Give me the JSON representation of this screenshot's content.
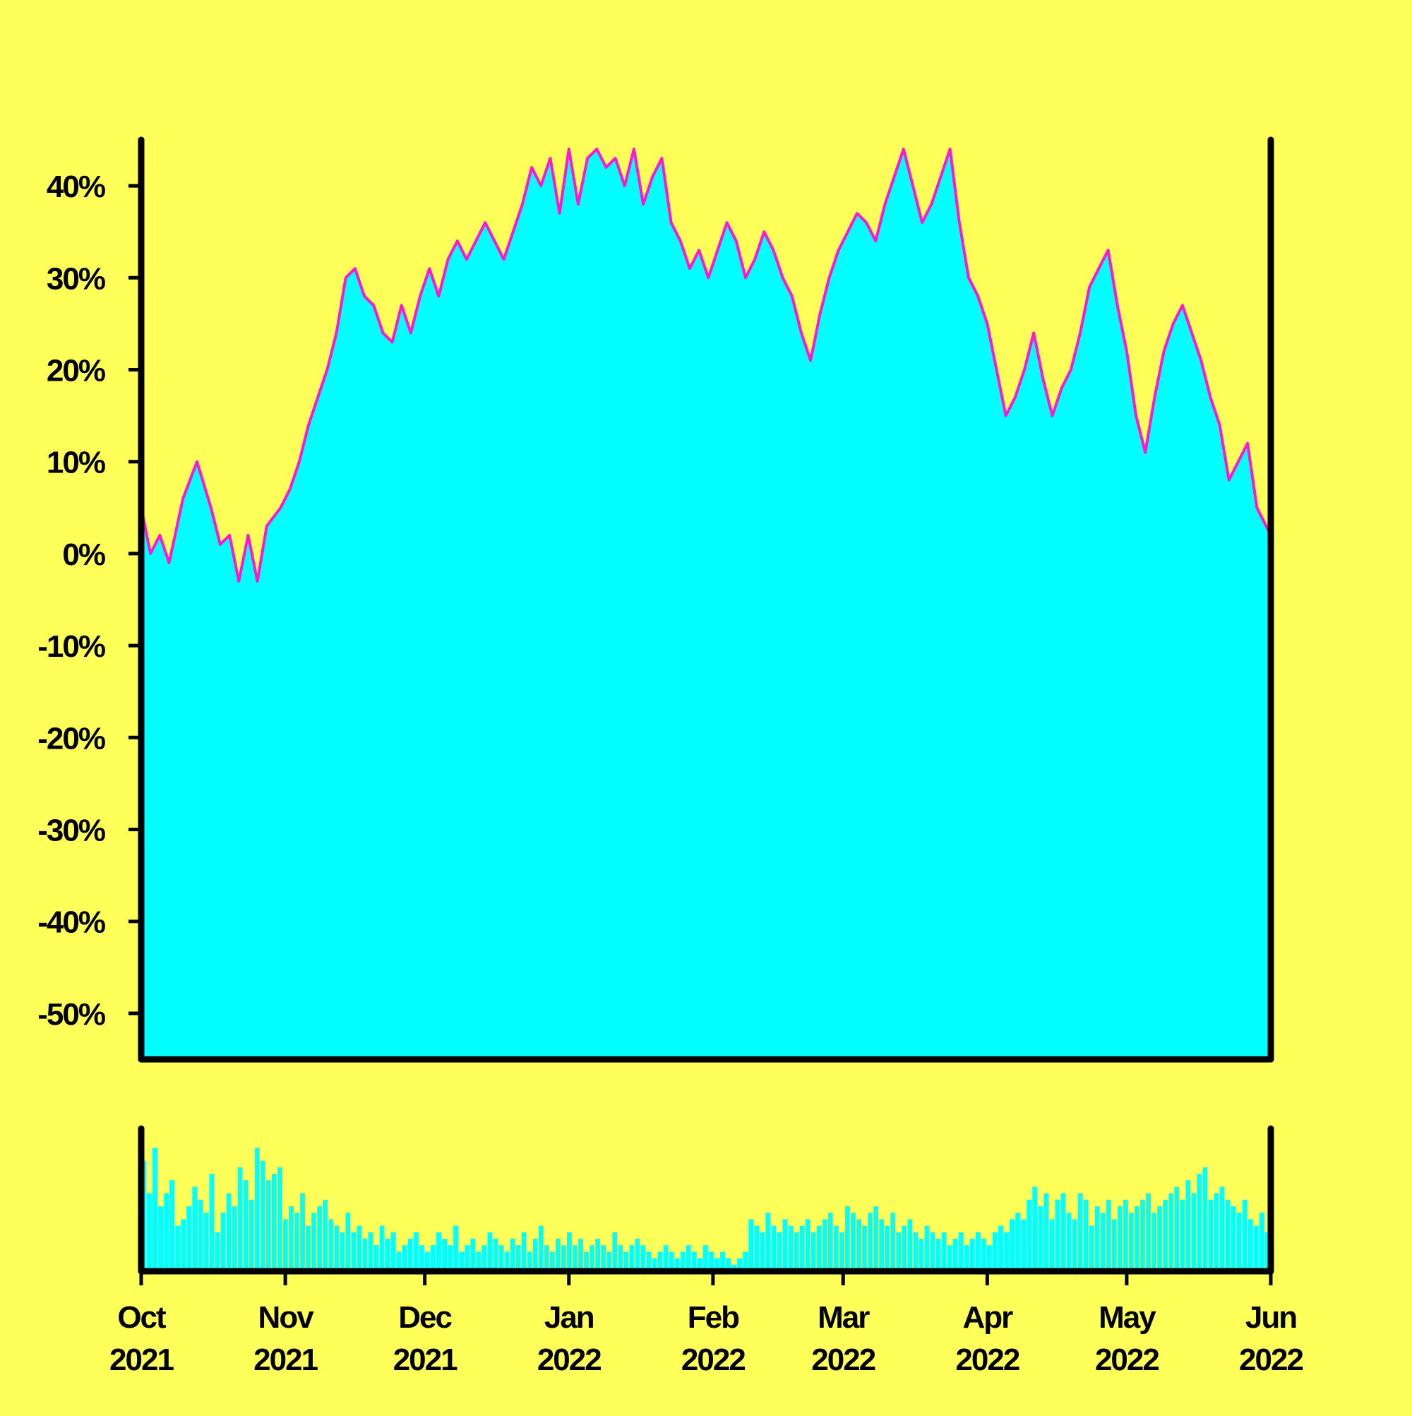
{
  "chart_data": [
    {
      "type": "area",
      "title": "",
      "xlabel": "",
      "ylabel": "",
      "x_range": [
        "2021-10-01",
        "2022-06-01"
      ],
      "ylim": [
        -0.55,
        0.45
      ],
      "yticks": [
        0.4,
        0.3,
        0.2,
        0.1,
        0,
        -0.1,
        -0.2,
        -0.3,
        -0.4,
        -0.5
      ],
      "ytick_labels": [
        "40%",
        "30%",
        "20%",
        "10%",
        "0%",
        "-10%",
        "-20%",
        "-30%",
        "-40%",
        "-50%"
      ],
      "xticks": [
        {
          "date": "2021-10-01",
          "month": "Oct",
          "year": "2021"
        },
        {
          "date": "2021-11-01",
          "month": "Nov",
          "year": "2021"
        },
        {
          "date": "2021-12-01",
          "month": "Dec",
          "year": "2021"
        },
        {
          "date": "2022-01-01",
          "month": "Jan",
          "year": "2022"
        },
        {
          "date": "2022-02-01",
          "month": "Feb",
          "year": "2022"
        },
        {
          "date": "2022-03-01",
          "month": "Mar",
          "year": "2022"
        },
        {
          "date": "2022-04-01",
          "month": "Apr",
          "year": "2022"
        },
        {
          "date": "2022-05-01",
          "month": "May",
          "year": "2022"
        },
        {
          "date": "2022-06-01",
          "month": "Jun",
          "year": "2022"
        }
      ],
      "series": [
        {
          "fill_color": "#00ffff",
          "line_color": "#ff18d2",
          "points": [
            [
              "2021-10-01",
              0.05
            ],
            [
              "2021-10-03",
              0.0
            ],
            [
              "2021-10-05",
              0.02
            ],
            [
              "2021-10-07",
              -0.01
            ],
            [
              "2021-10-10",
              0.06
            ],
            [
              "2021-10-13",
              0.1
            ],
            [
              "2021-10-16",
              0.05
            ],
            [
              "2021-10-18",
              0.01
            ],
            [
              "2021-10-20",
              0.02
            ],
            [
              "2021-10-22",
              -0.03
            ],
            [
              "2021-10-24",
              0.02
            ],
            [
              "2021-10-26",
              -0.03
            ],
            [
              "2021-10-28",
              0.03
            ],
            [
              "2021-10-31",
              0.05
            ],
            [
              "2021-11-02",
              0.07
            ],
            [
              "2021-11-04",
              0.1
            ],
            [
              "2021-11-06",
              0.14
            ],
            [
              "2021-11-08",
              0.17
            ],
            [
              "2021-11-10",
              0.2
            ],
            [
              "2021-11-12",
              0.24
            ],
            [
              "2021-11-14",
              0.3
            ],
            [
              "2021-11-16",
              0.31
            ],
            [
              "2021-11-18",
              0.28
            ],
            [
              "2021-11-20",
              0.27
            ],
            [
              "2021-11-22",
              0.24
            ],
            [
              "2021-11-24",
              0.23
            ],
            [
              "2021-11-26",
              0.27
            ],
            [
              "2021-11-28",
              0.24
            ],
            [
              "2021-11-30",
              0.28
            ],
            [
              "2021-12-02",
              0.31
            ],
            [
              "2021-12-04",
              0.28
            ],
            [
              "2021-12-06",
              0.32
            ],
            [
              "2021-12-08",
              0.34
            ],
            [
              "2021-12-10",
              0.32
            ],
            [
              "2021-12-12",
              0.34
            ],
            [
              "2021-12-14",
              0.36
            ],
            [
              "2021-12-16",
              0.34
            ],
            [
              "2021-12-18",
              0.32
            ],
            [
              "2021-12-20",
              0.35
            ],
            [
              "2021-12-22",
              0.38
            ],
            [
              "2021-12-24",
              0.42
            ],
            [
              "2021-12-26",
              0.4
            ],
            [
              "2021-12-28",
              0.43
            ],
            [
              "2021-12-30",
              0.37
            ],
            [
              "2022-01-01",
              0.44
            ],
            [
              "2022-01-03",
              0.38
            ],
            [
              "2022-01-05",
              0.43
            ],
            [
              "2022-01-07",
              0.44
            ],
            [
              "2022-01-09",
              0.42
            ],
            [
              "2022-01-11",
              0.43
            ],
            [
              "2022-01-13",
              0.4
            ],
            [
              "2022-01-15",
              0.44
            ],
            [
              "2022-01-17",
              0.38
            ],
            [
              "2022-01-19",
              0.41
            ],
            [
              "2022-01-21",
              0.43
            ],
            [
              "2022-01-23",
              0.36
            ],
            [
              "2022-01-25",
              0.34
            ],
            [
              "2022-01-27",
              0.31
            ],
            [
              "2022-01-29",
              0.33
            ],
            [
              "2022-01-31",
              0.3
            ],
            [
              "2022-02-02",
              0.33
            ],
            [
              "2022-02-04",
              0.36
            ],
            [
              "2022-02-06",
              0.34
            ],
            [
              "2022-02-08",
              0.3
            ],
            [
              "2022-02-10",
              0.32
            ],
            [
              "2022-02-12",
              0.35
            ],
            [
              "2022-02-14",
              0.33
            ],
            [
              "2022-02-16",
              0.3
            ],
            [
              "2022-02-18",
              0.28
            ],
            [
              "2022-02-20",
              0.24
            ],
            [
              "2022-02-22",
              0.21
            ],
            [
              "2022-02-24",
              0.26
            ],
            [
              "2022-02-26",
              0.3
            ],
            [
              "2022-02-28",
              0.33
            ],
            [
              "2022-03-02",
              0.35
            ],
            [
              "2022-03-04",
              0.37
            ],
            [
              "2022-03-06",
              0.36
            ],
            [
              "2022-03-08",
              0.34
            ],
            [
              "2022-03-10",
              0.38
            ],
            [
              "2022-03-12",
              0.41
            ],
            [
              "2022-03-14",
              0.44
            ],
            [
              "2022-03-16",
              0.4
            ],
            [
              "2022-03-18",
              0.36
            ],
            [
              "2022-03-20",
              0.38
            ],
            [
              "2022-03-22",
              0.41
            ],
            [
              "2022-03-24",
              0.44
            ],
            [
              "2022-03-26",
              0.36
            ],
            [
              "2022-03-28",
              0.3
            ],
            [
              "2022-03-30",
              0.28
            ],
            [
              "2022-04-01",
              0.25
            ],
            [
              "2022-04-03",
              0.2
            ],
            [
              "2022-04-05",
              0.15
            ],
            [
              "2022-04-07",
              0.17
            ],
            [
              "2022-04-09",
              0.2
            ],
            [
              "2022-04-11",
              0.24
            ],
            [
              "2022-04-13",
              0.19
            ],
            [
              "2022-04-15",
              0.15
            ],
            [
              "2022-04-17",
              0.18
            ],
            [
              "2022-04-19",
              0.2
            ],
            [
              "2022-04-21",
              0.24
            ],
            [
              "2022-04-23",
              0.29
            ],
            [
              "2022-04-25",
              0.31
            ],
            [
              "2022-04-27",
              0.33
            ],
            [
              "2022-04-29",
              0.27
            ],
            [
              "2022-05-01",
              0.22
            ],
            [
              "2022-05-03",
              0.15
            ],
            [
              "2022-05-05",
              0.11
            ],
            [
              "2022-05-07",
              0.17
            ],
            [
              "2022-05-09",
              0.22
            ],
            [
              "2022-05-11",
              0.25
            ],
            [
              "2022-05-13",
              0.27
            ],
            [
              "2022-05-15",
              0.24
            ],
            [
              "2022-05-17",
              0.21
            ],
            [
              "2022-05-19",
              0.17
            ],
            [
              "2022-05-21",
              0.14
            ],
            [
              "2022-05-23",
              0.08
            ],
            [
              "2022-05-25",
              0.1
            ],
            [
              "2022-05-27",
              0.12
            ],
            [
              "2022-05-29",
              0.05
            ],
            [
              "2022-05-31",
              0.03
            ],
            [
              "2022-06-01",
              0.02
            ]
          ]
        }
      ]
    },
    {
      "type": "bar",
      "title": "",
      "xlabel": "",
      "ylabel": "",
      "x_range": [
        "2021-10-01",
        "2022-06-01"
      ],
      "axis_labels_shown": false,
      "bar_color": "#00ffff",
      "values_daily_relative": [
        0.85,
        0.6,
        0.95,
        0.5,
        0.6,
        0.7,
        0.35,
        0.4,
        0.5,
        0.65,
        0.55,
        0.45,
        0.75,
        0.3,
        0.45,
        0.6,
        0.5,
        0.8,
        0.7,
        0.55,
        0.95,
        0.85,
        0.7,
        0.75,
        0.8,
        0.4,
        0.5,
        0.45,
        0.6,
        0.35,
        0.45,
        0.5,
        0.55,
        0.4,
        0.35,
        0.3,
        0.45,
        0.3,
        0.35,
        0.25,
        0.3,
        0.2,
        0.35,
        0.25,
        0.3,
        0.15,
        0.2,
        0.25,
        0.3,
        0.2,
        0.15,
        0.2,
        0.3,
        0.25,
        0.2,
        0.35,
        0.15,
        0.2,
        0.25,
        0.15,
        0.2,
        0.3,
        0.25,
        0.2,
        0.15,
        0.25,
        0.2,
        0.3,
        0.15,
        0.25,
        0.35,
        0.2,
        0.15,
        0.25,
        0.2,
        0.3,
        0.2,
        0.25,
        0.15,
        0.2,
        0.25,
        0.2,
        0.15,
        0.3,
        0.2,
        0.15,
        0.2,
        0.25,
        0.2,
        0.15,
        0.1,
        0.15,
        0.2,
        0.15,
        0.1,
        0.15,
        0.2,
        0.15,
        0.1,
        0.2,
        0.15,
        0.1,
        0.15,
        0.1,
        0.05,
        0.1,
        0.15,
        0.4,
        0.35,
        0.3,
        0.45,
        0.35,
        0.3,
        0.4,
        0.35,
        0.3,
        0.35,
        0.4,
        0.3,
        0.35,
        0.4,
        0.45,
        0.35,
        0.3,
        0.5,
        0.45,
        0.4,
        0.35,
        0.45,
        0.5,
        0.4,
        0.35,
        0.45,
        0.3,
        0.35,
        0.4,
        0.3,
        0.25,
        0.35,
        0.3,
        0.25,
        0.3,
        0.2,
        0.25,
        0.3,
        0.2,
        0.25,
        0.3,
        0.25,
        0.2,
        0.3,
        0.35,
        0.3,
        0.4,
        0.45,
        0.4,
        0.55,
        0.65,
        0.5,
        0.6,
        0.4,
        0.55,
        0.6,
        0.45,
        0.4,
        0.6,
        0.55,
        0.35,
        0.5,
        0.45,
        0.55,
        0.4,
        0.5,
        0.55,
        0.45,
        0.5,
        0.55,
        0.6,
        0.45,
        0.5,
        0.55,
        0.6,
        0.65,
        0.55,
        0.7,
        0.6,
        0.75,
        0.8,
        0.55,
        0.6,
        0.65,
        0.55,
        0.5,
        0.45,
        0.55,
        0.4,
        0.35,
        0.45,
        0.3
      ]
    }
  ]
}
